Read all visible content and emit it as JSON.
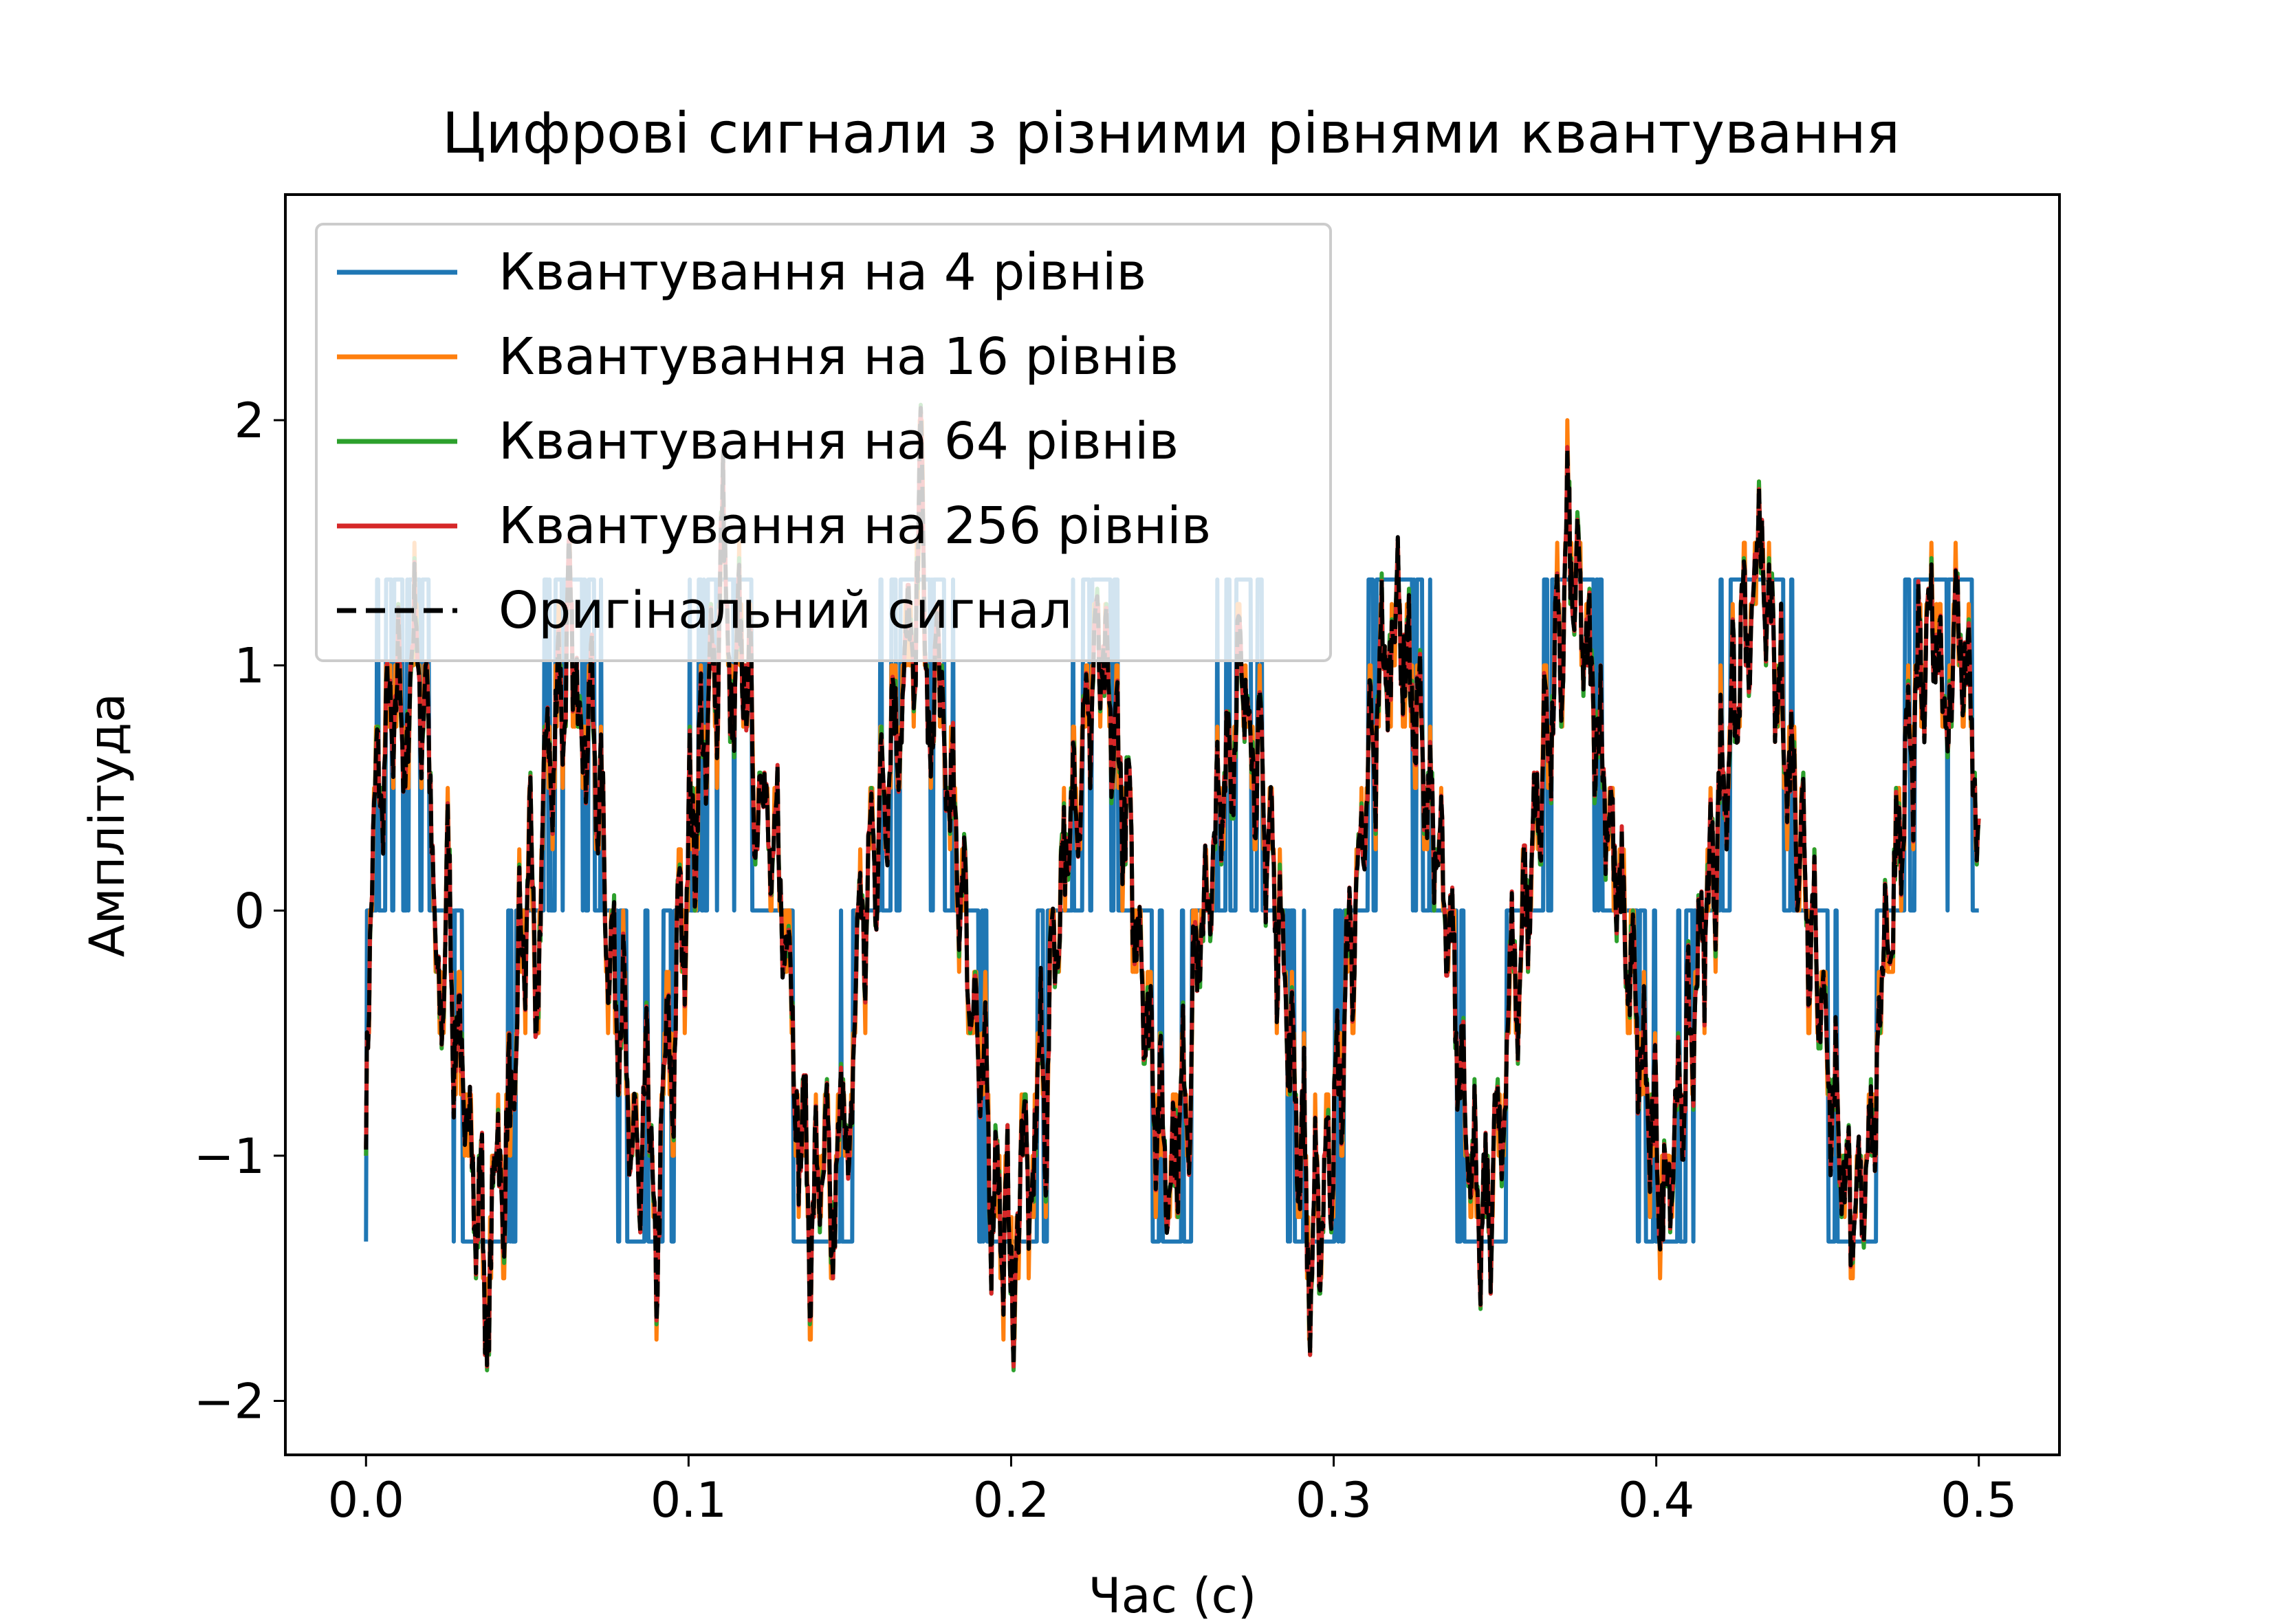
{
  "chart_data": {
    "type": "line",
    "title": "Цифрові сигнали з різними рівнями квантування",
    "xlabel": "Час (с)",
    "ylabel": "Амплітуда",
    "xlim": [
      -0.025,
      0.525
    ],
    "ylim": [
      -2.22,
      2.92
    ],
    "xticks": [
      0.0,
      0.1,
      0.2,
      0.3,
      0.4,
      0.5
    ],
    "xtick_labels": [
      "0.0",
      "0.1",
      "0.2",
      "0.3",
      "0.4",
      "0.5"
    ],
    "yticks": [
      -2,
      -1,
      0,
      1,
      2
    ],
    "ytick_labels": [
      "−2",
      "−1",
      "0",
      "1",
      "2"
    ],
    "grid": false,
    "legend_position": "upper-left",
    "series": [
      {
        "name": "Квантування на 4 рівнів",
        "color": "#1f77b4",
        "style": "solid",
        "levels": 4
      },
      {
        "name": "Квантування на 16 рівнів",
        "color": "#ff7f0e",
        "style": "solid",
        "levels": 16
      },
      {
        "name": "Квантування на 64 рівнів",
        "color": "#2ca02c",
        "style": "solid",
        "levels": 64
      },
      {
        "name": "Квантування на 256 рівнів",
        "color": "#d62728",
        "style": "solid",
        "levels": 256
      },
      {
        "name": "Оригінальний сигнал",
        "color": "#000000",
        "style": "dashed"
      }
    ],
    "original_signal": {
      "x_start": 0.0,
      "x_end": 0.5,
      "y": [
        -0.8,
        0.05,
        0.7,
        0.3,
        1.0,
        0.5,
        1.2,
        0.4,
        0.9,
        1.35,
        0.6,
        1.1,
        0.2,
        -0.3,
        -0.5,
        0.4,
        -0.7,
        -0.3,
        -1.1,
        -0.6,
        -1.5,
        -0.9,
        -1.95,
        -1.2,
        -0.8,
        -1.4,
        -0.6,
        -1.0,
        0.1,
        -0.4,
        0.6,
        -0.7,
        0.2,
        0.9,
        0.3,
        1.2,
        0.6,
        1.4,
        0.8,
        1.0,
        0.5,
        1.1,
        0.3,
        0.6,
        -0.3,
        0.0,
        -0.6,
        -0.2,
        -1.2,
        -0.7,
        -1.4,
        -0.5,
        -1.0,
        -1.6,
        -0.8,
        -0.4,
        -0.9,
        0.2,
        -0.3,
        0.6,
        0.1,
        0.9,
        0.4,
        1.3,
        0.7,
        1.8,
        1.0,
        0.6,
        1.3,
        0.8,
        1.1,
        0.2,
        0.7,
        0.4,
        0.0,
        0.5,
        -0.3,
        0.1,
        -0.6,
        -1.1,
        -0.7,
        -1.6,
        -0.9,
        -1.3,
        -0.8,
        -1.5,
        -1.0,
        -0.6,
        -1.2,
        -0.5,
        0.2,
        -0.3,
        0.5,
        0.0,
        0.7,
        0.3,
        1.0,
        0.6,
        0.9,
        1.3,
        0.7,
        2.1,
        1.0,
        0.5,
        1.2,
        0.8,
        0.4,
        0.6,
        -0.1,
        0.3,
        -0.5,
        -0.2,
        -0.9,
        -0.5,
        -1.4,
        -0.8,
        -1.6,
        -1.0,
        -1.8,
        -1.2,
        -0.7,
        -1.4,
        -0.9,
        -0.4,
        -1.1,
        0.1,
        -0.3,
        0.4,
        0.0,
        0.7,
        0.3,
        1.0,
        0.6,
        1.3,
        0.8,
        1.1,
        0.5,
        0.9,
        0.2,
        0.6,
        -0.2,
        0.1,
        -0.6,
        -0.3,
        -1.0,
        -0.6,
        -1.3,
        -0.8,
        -1.1,
        -0.5,
        -1.0,
        0.0,
        -0.4,
        0.3,
        -0.2,
        0.6,
        0.2,
        0.9,
        0.4,
        1.2,
        0.7,
        1.0,
        0.4,
        0.8,
        0.1,
        0.5,
        -0.3,
        0.2,
        -0.7,
        -0.4,
        -1.2,
        -0.7,
        -1.8,
        -1.0,
        -1.5,
        -0.8,
        -1.2,
        -0.5,
        -0.9,
        0.1,
        -0.4,
        0.5,
        0.0,
        0.9,
        0.4,
        1.3,
        0.8,
        1.1,
        1.4,
        0.9,
        1.2,
        0.6,
        1.0,
        0.3,
        0.7,
        0.0,
        0.4,
        -0.4,
        0.1,
        -0.8,
        -0.4,
        -1.2,
        -0.8,
        -1.6,
        -1.0,
        -1.4,
        -0.7,
        -1.1,
        -0.5,
        0.0,
        -0.6,
        0.3,
        -0.2,
        0.6,
        0.2,
        1.0,
        0.5,
        1.3,
        0.8,
        1.8,
        1.1,
        1.5,
        0.9,
        1.2,
        0.6,
        0.9,
        0.3,
        0.5,
        -0.1,
        0.2,
        -0.4,
        -0.1,
        -0.8,
        -0.4,
        -1.1,
        -0.7,
        -1.4,
        -0.9,
        -1.2,
        -0.6,
        -1.0,
        -0.3,
        -0.7,
        0.1,
        -0.3,
        0.4,
        0.0,
        0.8,
        0.3,
        1.1,
        0.6,
        1.4,
        0.9,
        1.2,
        1.8,
        1.0,
        1.4,
        0.7,
        1.1,
        0.4,
        0.8,
        0.1,
        0.5,
        -0.3,
        0.2,
        -0.6,
        -0.2,
        -1.0,
        -0.5,
        -1.3,
        -0.8,
        -1.6,
        -1.0,
        -1.3,
        -0.7,
        -1.0,
        -0.4,
        0.1,
        -0.3,
        0.5,
        0.1,
        0.9,
        0.4,
        1.2,
        0.7,
        1.4,
        1.0,
        1.2,
        0.6,
        0.9,
        1.4,
        0.8,
        1.1,
        0.5,
        0.2
      ]
    }
  }
}
